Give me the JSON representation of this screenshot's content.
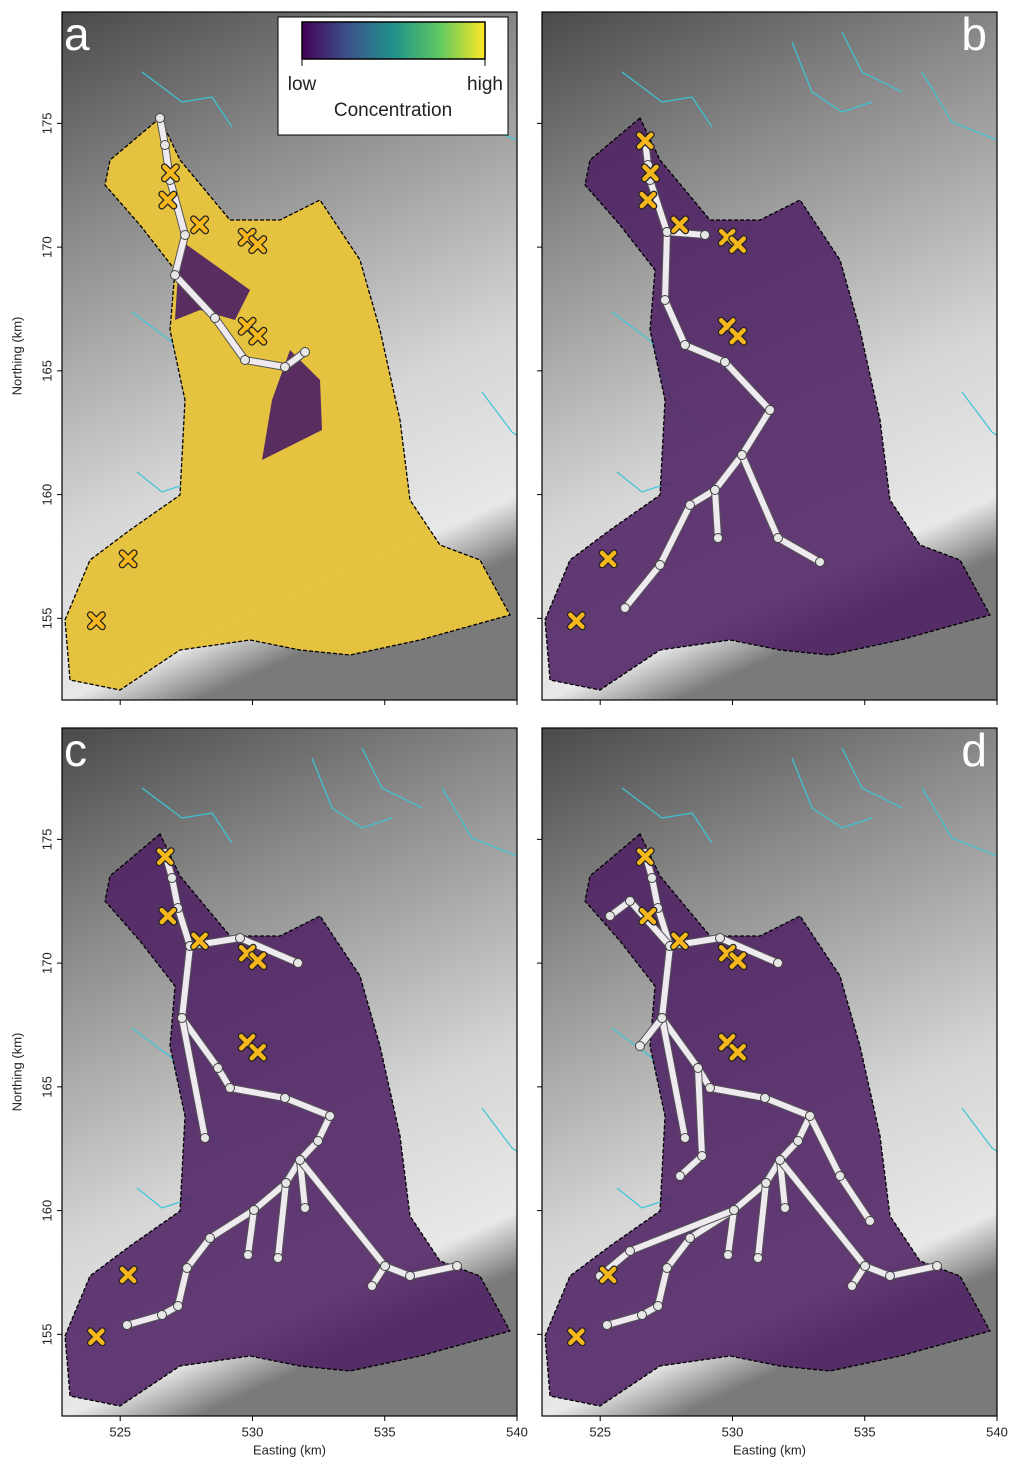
{
  "chart_data": {
    "type": "map",
    "xlabel": "Easting (km)",
    "ylabel": "Northing (km)",
    "xlim": [
      522.8,
      540
    ],
    "ylim": [
      151.7,
      179.5
    ],
    "xticks": [
      525,
      530,
      535,
      540
    ],
    "yticks": [
      155,
      160,
      165,
      170,
      175
    ],
    "colorbar": {
      "low": "low",
      "high": "high",
      "label": "Concentration",
      "colormap": [
        "#440154",
        "#3b528b",
        "#21918c",
        "#5ec962",
        "#fde725"
      ]
    },
    "colors": {
      "low": "#4e2163",
      "high": "#f1cf3c",
      "sample": "#f5b71c"
    },
    "panels": [
      {
        "label": "a",
        "samples": {
          "x": [
            526.9,
            526.8,
            528.0,
            529.8,
            530.2,
            529.8,
            530.2,
            525.3,
            524.1
          ],
          "y": [
            173.0,
            171.9,
            170.9,
            170.4,
            170.1,
            166.8,
            166.4,
            157.4,
            154.9
          ]
        }
      },
      {
        "label": "b",
        "samples": {
          "x": [
            526.7,
            526.9,
            526.8,
            528.0,
            529.8,
            530.2,
            529.8,
            530.2,
            525.3,
            524.1
          ],
          "y": [
            174.3,
            173.0,
            171.9,
            170.9,
            170.4,
            170.1,
            166.8,
            166.4,
            157.4,
            154.9
          ]
        }
      },
      {
        "label": "c",
        "samples": {
          "x": [
            526.7,
            526.8,
            528.0,
            529.8,
            530.2,
            529.8,
            530.2,
            525.3,
            524.1
          ],
          "y": [
            174.3,
            171.9,
            170.9,
            170.4,
            170.1,
            166.8,
            166.4,
            157.4,
            154.9
          ]
        }
      },
      {
        "label": "d",
        "samples": {
          "x": [
            526.7,
            526.8,
            528.0,
            529.8,
            530.2,
            529.8,
            530.2,
            525.3,
            524.1
          ],
          "y": [
            174.3,
            171.9,
            170.9,
            170.4,
            170.1,
            166.8,
            166.4,
            157.4,
            154.9
          ]
        }
      }
    ]
  }
}
